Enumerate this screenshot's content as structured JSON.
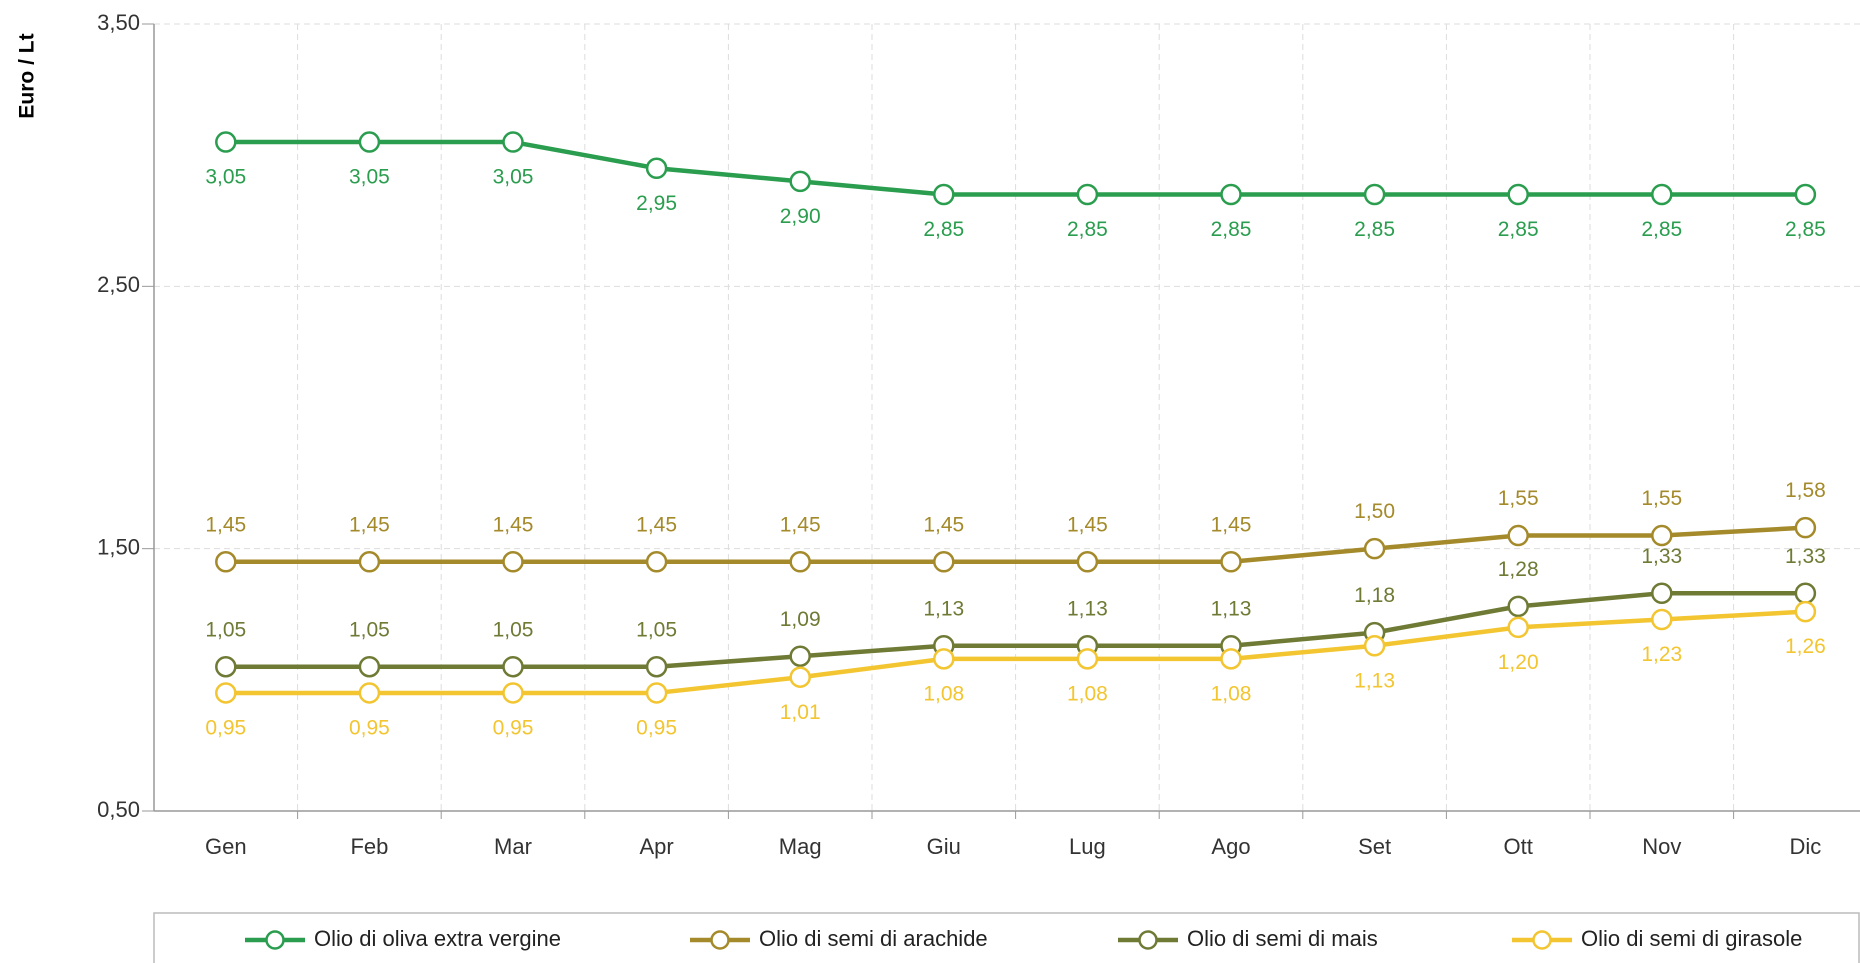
{
  "chart_data": {
    "type": "line",
    "y_label": "Euro / Lt",
    "categories": [
      "Gen",
      "Feb",
      "Mar",
      "Apr",
      "Mag",
      "Giu",
      "Lug",
      "Ago",
      "Set",
      "Ott",
      "Nov",
      "Dic"
    ],
    "ylim": [
      0.5,
      3.5
    ],
    "yticks": [
      {
        "value": 0.5,
        "label": "0,50"
      },
      {
        "value": 1.5,
        "label": "1,50"
      },
      {
        "value": 2.5,
        "label": "2,50"
      },
      {
        "value": 3.5,
        "label": "3,50"
      }
    ],
    "grid": true,
    "legend": "bottom",
    "series": [
      {
        "name": "Olio di oliva extra vergine",
        "color": "#2a9d4e",
        "label_position": "below",
        "values": [
          3.05,
          3.05,
          3.05,
          2.95,
          2.9,
          2.85,
          2.85,
          2.85,
          2.85,
          2.85,
          2.85,
          2.85
        ],
        "value_labels": [
          "3,05",
          "3,05",
          "3,05",
          "2,95",
          "2,90",
          "2,85",
          "2,85",
          "2,85",
          "2,85",
          "2,85",
          "2,85",
          "2,85"
        ]
      },
      {
        "name": "Olio di semi di arachide",
        "color": "#a48a2a",
        "label_position": "above",
        "values": [
          1.45,
          1.45,
          1.45,
          1.45,
          1.45,
          1.45,
          1.45,
          1.45,
          1.5,
          1.55,
          1.55,
          1.58
        ],
        "value_labels": [
          "1,45",
          "1,45",
          "1,45",
          "1,45",
          "1,45",
          "1,45",
          "1,45",
          "1,45",
          "1,50",
          "1,55",
          "1,55",
          "1,58"
        ]
      },
      {
        "name": "Olio di semi di mais",
        "color": "#6f7a35",
        "label_position": "above",
        "values": [
          1.05,
          1.05,
          1.05,
          1.05,
          1.09,
          1.13,
          1.13,
          1.13,
          1.18,
          1.28,
          1.33,
          1.33
        ],
        "value_labels": [
          "1,05",
          "1,05",
          "1,05",
          "1,05",
          "1,09",
          "1,13",
          "1,13",
          "1,13",
          "1,18",
          "1,28",
          "1,33",
          "1,33"
        ]
      },
      {
        "name": "Olio di semi di girasole",
        "color": "#f2c531",
        "label_position": "below",
        "values": [
          0.95,
          0.95,
          0.95,
          0.95,
          1.01,
          1.08,
          1.08,
          1.08,
          1.13,
          1.2,
          1.23,
          1.26
        ],
        "value_labels": [
          "0,95",
          "0,95",
          "0,95",
          "0,95",
          "1,01",
          "1,08",
          "1,08",
          "1,08",
          "1,13",
          "1,20",
          "1,23",
          "1,26"
        ]
      }
    ]
  }
}
